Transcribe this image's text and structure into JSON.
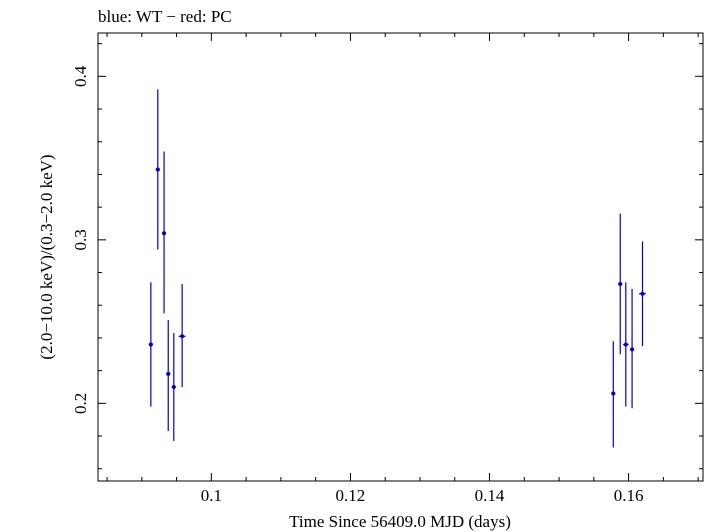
{
  "chart_data": {
    "type": "scatter",
    "title": "blue: WT − red: PC",
    "xlabel": "Time Since 56409.0 MJD (days)",
    "ylabel": "(2.0−10.0 keV)/(0.3−2.0 keV)",
    "xlim": [
      0.0837,
      0.1707
    ],
    "ylim": [
      0.1525,
      0.4265
    ],
    "x_ticks": [
      0.1,
      0.12,
      0.14,
      0.16
    ],
    "x_tick_labels": [
      "0.1",
      "0.12",
      "0.14",
      "0.16"
    ],
    "y_ticks": [
      0.2,
      0.3,
      0.4
    ],
    "y_tick_labels": [
      "0.2",
      "0.3",
      "0.4"
    ],
    "grid": false,
    "series": [
      {
        "color": "#0000cc",
        "points": [
          {
            "x": 0.0913,
            "y": 0.236,
            "xerr": 0.0003,
            "ylo": 0.198,
            "yhi": 0.274
          },
          {
            "x": 0.0923,
            "y": 0.343,
            "xerr": 0.0003,
            "ylo": 0.294,
            "yhi": 0.392
          },
          {
            "x": 0.0932,
            "y": 0.304,
            "xerr": 0.0003,
            "ylo": 0.255,
            "yhi": 0.354
          },
          {
            "x": 0.0938,
            "y": 0.218,
            "xerr": 0.0003,
            "ylo": 0.183,
            "yhi": 0.251
          },
          {
            "x": 0.0946,
            "y": 0.21,
            "xerr": 0.0003,
            "ylo": 0.177,
            "yhi": 0.243
          },
          {
            "x": 0.0958,
            "y": 0.241,
            "xerr": 0.0005,
            "ylo": 0.21,
            "yhi": 0.273
          },
          {
            "x": 0.1578,
            "y": 0.206,
            "xerr": 0.0003,
            "ylo": 0.173,
            "yhi": 0.238
          },
          {
            "x": 0.1588,
            "y": 0.273,
            "xerr": 0.0003,
            "ylo": 0.23,
            "yhi": 0.316
          },
          {
            "x": 0.1596,
            "y": 0.236,
            "xerr": 0.0004,
            "ylo": 0.198,
            "yhi": 0.274
          },
          {
            "x": 0.1605,
            "y": 0.233,
            "xerr": 0.0003,
            "ylo": 0.197,
            "yhi": 0.27
          },
          {
            "x": 0.162,
            "y": 0.267,
            "xerr": 0.0005,
            "ylo": 0.235,
            "yhi": 0.299
          }
        ]
      }
    ]
  }
}
